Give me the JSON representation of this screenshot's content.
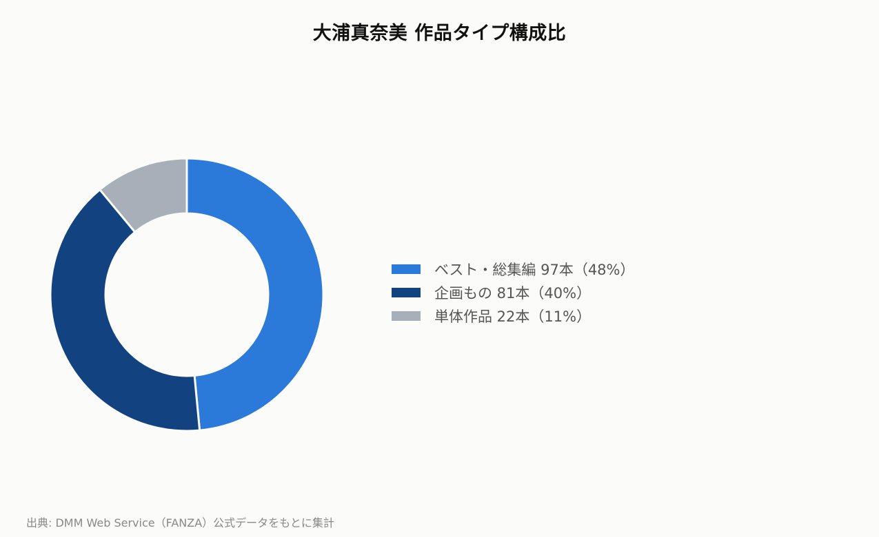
{
  "chart_data": {
    "type": "pie",
    "title": "大浦真奈美 作品タイプ構成比",
    "series": [
      {
        "values": [
          97,
          81,
          22
        ]
      }
    ],
    "slices": [
      {
        "label": "ベスト・総集編 97本（48%）",
        "value": 97,
        "percent": 48,
        "color": "#2b79d9"
      },
      {
        "label": "企画もの 81本（40%）",
        "value": 81,
        "percent": 40,
        "color": "#12427f"
      },
      {
        "label": "単体作品 22本（11%）",
        "value": 22,
        "percent": 11,
        "color": "#a7afb8"
      }
    ],
    "legend_position": "right"
  },
  "source": "出典: DMM Web Service（FANZA）公式データをもとに集計"
}
